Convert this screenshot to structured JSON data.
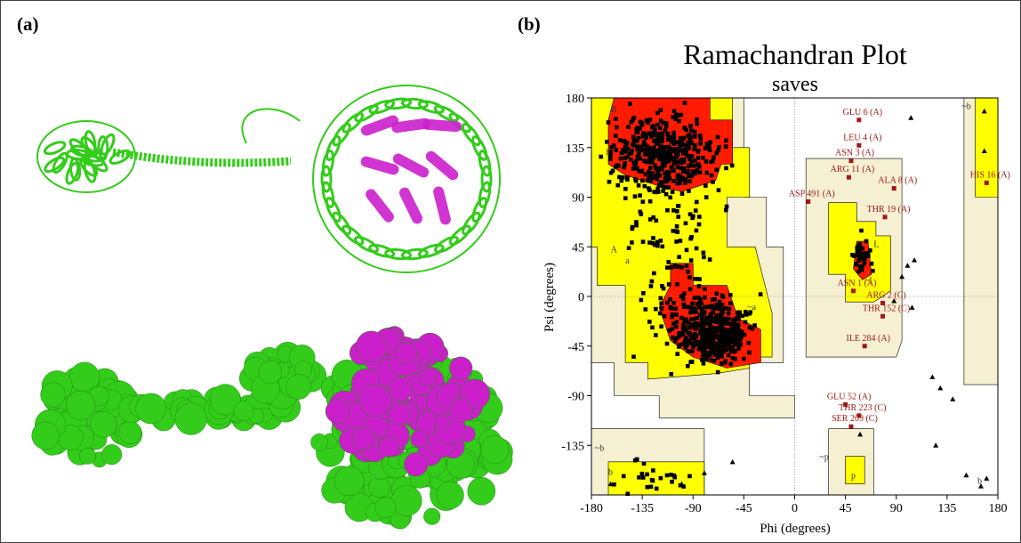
{
  "panel_a": {
    "label": "(a)"
  },
  "panel_b": {
    "label": "(b)"
  },
  "colors": {
    "protein_green": "#33cc1a",
    "protein_magenta": "#cc1fcc",
    "core": "#ff1a00",
    "allowed": "#ffff00",
    "generous": "#f3f0b0",
    "outer": "#f6f0d2",
    "residue_marker": "#a01818"
  },
  "chart_data": {
    "type": "scatter",
    "title": "Ramachandran Plot",
    "subtitle": "saves",
    "xlabel": "Phi (degrees)",
    "ylabel": "Psi (degrees)",
    "xlim": [
      -180,
      180
    ],
    "ylim": [
      -180,
      180
    ],
    "xticks": [
      "-180",
      "-135",
      "-90",
      "-45",
      "0",
      "45",
      "90",
      "135",
      "180"
    ],
    "yticks": [
      "180",
      "135",
      "90",
      "45",
      "0",
      "-45",
      "-90",
      "-135"
    ],
    "region_labels": [
      "B",
      "b",
      "~b",
      "A",
      "a",
      "~a",
      "L",
      "~l",
      "~p",
      "p",
      "b",
      "~b",
      "~b",
      "b"
    ],
    "labeled_residues": [
      {
        "label": "GLU 6 (A)",
        "phi": 57,
        "psi": 160
      },
      {
        "label": "LEU 4 (A)",
        "phi": 57,
        "psi": 137
      },
      {
        "label": "ASN 3 (A)",
        "phi": 50,
        "psi": 123
      },
      {
        "label": "ARG 11 (A)",
        "phi": 48,
        "psi": 108
      },
      {
        "label": "ALA 8 (A)",
        "phi": 88,
        "psi": 98
      },
      {
        "label": "ASP 491 (A)",
        "phi": 12,
        "psi": 86
      },
      {
        "label": "THR 19 (A)",
        "phi": 80,
        "psi": 72
      },
      {
        "label": "HIS 16 (A)",
        "phi": 170,
        "psi": 103
      },
      {
        "label": "ASN 1 (A)",
        "phi": 52,
        "psi": 5
      },
      {
        "label": "ARG 2 (C)",
        "phi": 78,
        "psi": -6
      },
      {
        "label": "THR 152 (C)",
        "phi": 78,
        "psi": -18
      },
      {
        "label": "ILE 284 (A)",
        "phi": 62,
        "psi": -45
      },
      {
        "label": "GLU 52 (A)",
        "phi": 45,
        "psi": -98
      },
      {
        "label": "THR 223 (C)",
        "phi": 57,
        "psi": -108
      },
      {
        "label": "SER 209 (C)",
        "phi": 50,
        "psi": -118
      }
    ],
    "glycine_triangles": [
      [
        103,
        162
      ],
      [
        168,
        168
      ],
      [
        168,
        132
      ],
      [
        100,
        28
      ],
      [
        106,
        33
      ],
      [
        95,
        18
      ],
      [
        104,
        -10
      ],
      [
        88,
        -4
      ],
      [
        122,
        -73
      ],
      [
        129,
        -83
      ],
      [
        140,
        -93
      ],
      [
        125,
        -135
      ],
      [
        152,
        -162
      ],
      [
        165,
        -172
      ],
      [
        170,
        -165
      ],
      [
        58,
        -125
      ],
      [
        -55,
        -150
      ],
      [
        -163,
        -170
      ],
      [
        -100,
        -170
      ],
      [
        -80,
        -160
      ]
    ]
  }
}
